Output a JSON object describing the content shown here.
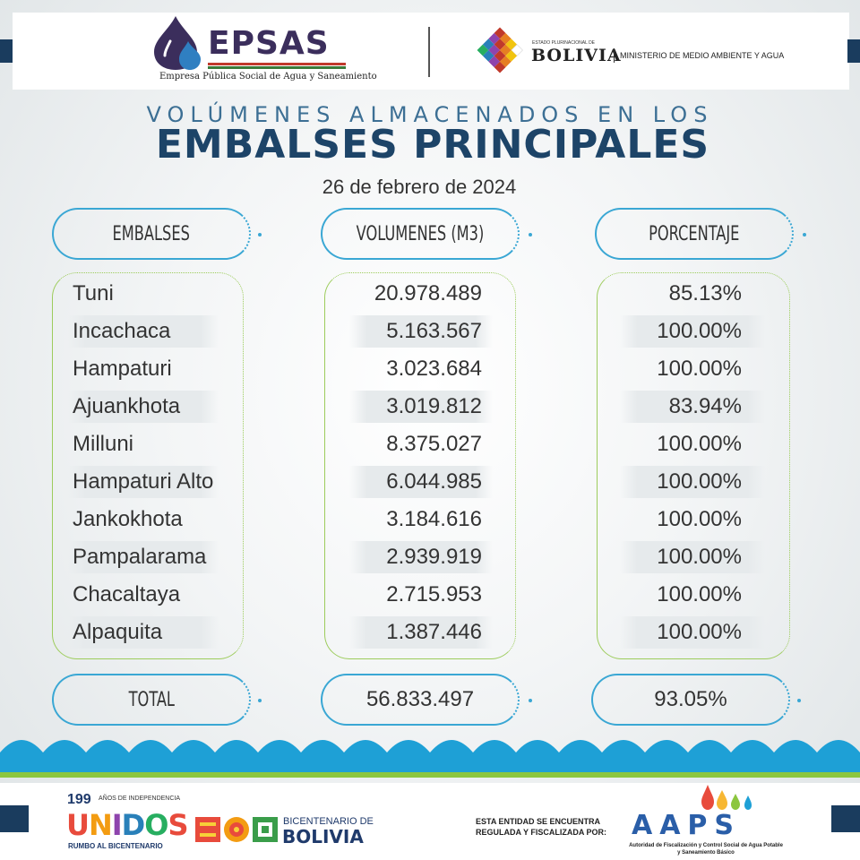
{
  "header": {
    "epsas_name": "EPSAS",
    "epsas_subtitle": "Empresa Pública Social de Agua y Saneamiento",
    "state_label": "ESTADO PLURINACIONAL DE",
    "country_name": "BOLIVIA",
    "ministry": "MINISTERIO DE MEDIO AMBIENTE Y AGUA"
  },
  "title": {
    "line1": "VOLÚMENES ALMACENADOS EN LOS",
    "line2": "EMBALSES PRINCIPALES",
    "date": "26 de febrero de 2024"
  },
  "table": {
    "headers": {
      "embalses": "EMBALSES",
      "volumenes": "VOLUMENES (M3)",
      "porcentaje": "PORCENTAJE"
    },
    "rows": [
      {
        "name": "Tuni",
        "volume": "20.978.489",
        "percent": "85.13%"
      },
      {
        "name": "Incachaca",
        "volume": "5.163.567",
        "percent": "100.00%"
      },
      {
        "name": "Hampaturi",
        "volume": "3.023.684",
        "percent": "100.00%"
      },
      {
        "name": "Ajuankhota",
        "volume": "3.019.812",
        "percent": "83.94%"
      },
      {
        "name": "Milluni",
        "volume": "8.375.027",
        "percent": "100.00%"
      },
      {
        "name": "Hampaturi Alto",
        "volume": "6.044.985",
        "percent": "100.00%"
      },
      {
        "name": "Jankokhota",
        "volume": "3.184.616",
        "percent": "100.00%"
      },
      {
        "name": "Pampalarama",
        "volume": "2.939.919",
        "percent": "100.00%"
      },
      {
        "name": "Chacaltaya",
        "volume": "2.715.953",
        "percent": "100.00%"
      },
      {
        "name": "Alpaquita",
        "volume": "1.387.446",
        "percent": "100.00%"
      }
    ],
    "total": {
      "label": "TOTAL",
      "volume": "56.833.497",
      "percent": "93.05%"
    }
  },
  "footer": {
    "years_number": "199",
    "years_label": "AÑOS DE INDEPENDENCIA",
    "unidos": "UNIDOS",
    "rumbo": "RUMBO AL BICENTENARIO",
    "bicentenario_small": "BICENTENARIO DE",
    "bicentenario_name": "BOLIVIA",
    "regulated_text": "ESTA ENTIDAD SE ENCUENTRA REGULADA Y FISCALIZADA POR:",
    "aaps_name": "AAPS",
    "aaps_subtitle": "Autoridad de Fiscalización y Control Social de Agua Potable y Saneamiento Básico"
  },
  "colors": {
    "title_light": "#3c6f94",
    "title_bold": "#1d4468",
    "pill_border": "#3aa7d4",
    "column_border": "#9dcc5c",
    "wave": "#1ea0d6",
    "green_line": "#8cc63f"
  }
}
